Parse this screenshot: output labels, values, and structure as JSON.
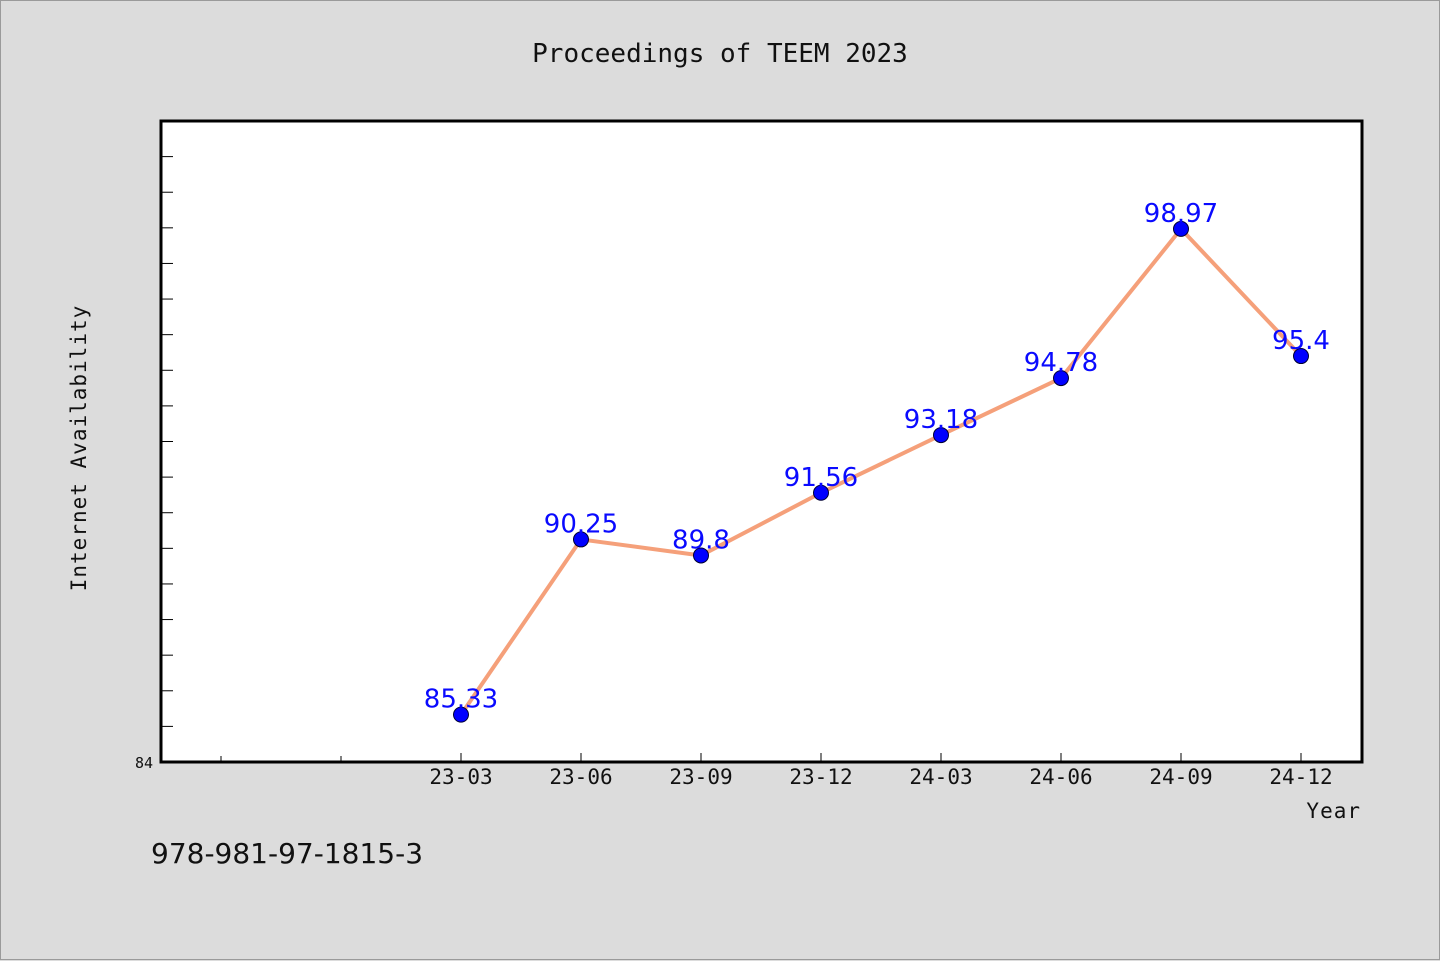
{
  "chart_data": {
    "type": "line",
    "title": "Proceedings of TEEM 2023",
    "xlabel": "Year",
    "ylabel": "Internet Availability",
    "categories": [
      "23-03",
      "23-06",
      "23-09",
      "23-12",
      "24-03",
      "24-06",
      "24-09",
      "24-12"
    ],
    "series": [
      {
        "values": [
          85.33,
          90.25,
          89.8,
          91.56,
          93.18,
          94.78,
          98.97,
          95.4
        ],
        "labels": [
          "85.33",
          "90.25",
          "89.8",
          "91.56",
          "93.18",
          "94.78",
          "98.97",
          "95.4"
        ]
      }
    ],
    "ylim": [
      84,
      102
    ],
    "ytick_labels": [
      "84"
    ],
    "grid": false,
    "colors": {
      "line": "#f5a07a",
      "marker": "#0000ff",
      "data_label": "#0a0aff",
      "plot_background": "#ffffff",
      "page_background": "#dcdcdc"
    }
  },
  "footer": {
    "isbn": "978-981-97-1815-3"
  }
}
